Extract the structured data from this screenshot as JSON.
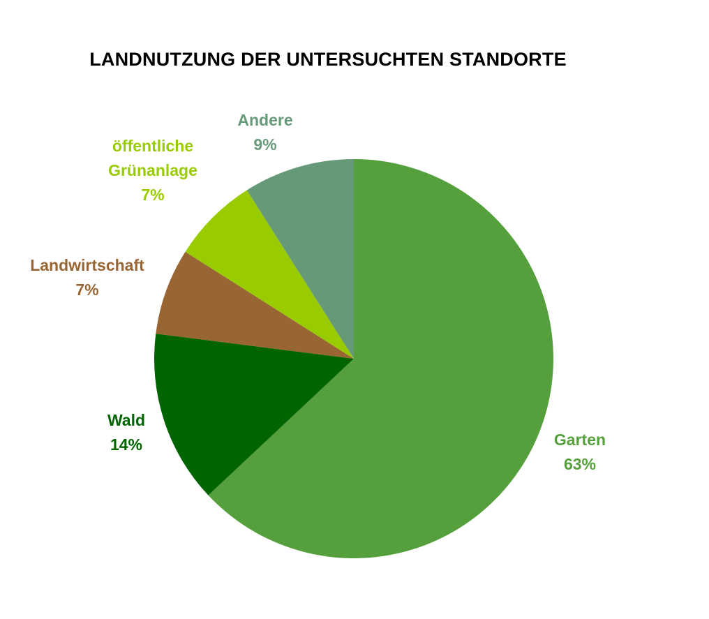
{
  "chart_data": {
    "type": "pie",
    "title": "LANDNUTZUNG DER UNTERSUCHTEN STANDORTE",
    "slices": [
      {
        "name": "Garten",
        "label_lines": [
          "Garten"
        ],
        "percent_label": "63%",
        "value": 63,
        "color": "#55a03c"
      },
      {
        "name": "Wald",
        "label_lines": [
          "Wald"
        ],
        "percent_label": "14%",
        "value": 14,
        "color": "#006400"
      },
      {
        "name": "Landwirtschaft",
        "label_lines": [
          "Landwirtschaft"
        ],
        "percent_label": "7%",
        "value": 7,
        "color": "#996633"
      },
      {
        "name": "öffentliche Grünanlage",
        "label_lines": [
          "öffentliche",
          "Grünanlage"
        ],
        "percent_label": "7%",
        "value": 7,
        "color": "#99cc00"
      },
      {
        "name": "Andere",
        "label_lines": [
          "Andere"
        ],
        "percent_label": "9%",
        "value": 9,
        "color": "#669977"
      }
    ],
    "start_angle": "top",
    "direction": "clockwise",
    "legend": "none"
  }
}
